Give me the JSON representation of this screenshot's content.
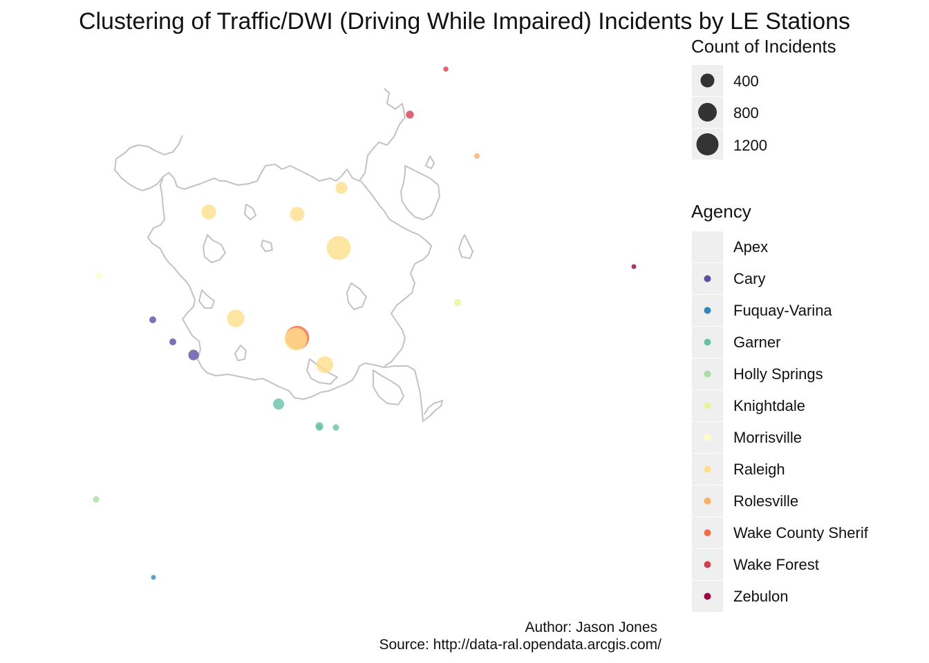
{
  "title": "Clustering of Traffic/DWI (Driving While Impaired) Incidents by LE Stations",
  "caption": {
    "author": "Author: Jason Jones",
    "source": "Source: http://data-ral.opendata.arcgis.com/"
  },
  "size_legend": {
    "title": "Count of Incidents",
    "entries": [
      "400",
      "800",
      "1200"
    ]
  },
  "agency_legend": {
    "title": "Agency",
    "entries": [
      {
        "name": "Apex",
        "color": ""
      },
      {
        "name": "Cary",
        "color": "#5e4fa2"
      },
      {
        "name": "Fuquay-Varina",
        "color": "#3288bd"
      },
      {
        "name": "Garner",
        "color": "#66c2a5"
      },
      {
        "name": "Holly Springs",
        "color": "#abdda4"
      },
      {
        "name": "Knightdale",
        "color": "#e6f598"
      },
      {
        "name": "Morrisville",
        "color": "#ffffbf"
      },
      {
        "name": "Raleigh",
        "color": "#fee08b"
      },
      {
        "name": "Rolesville",
        "color": "#fdae61"
      },
      {
        "name": "Wake County Sherif",
        "color": "#f46d43"
      },
      {
        "name": "Wake Forest",
        "color": "#d53e4f"
      },
      {
        "name": "Zebulon",
        "color": "#9e0142"
      }
    ]
  },
  "chart_data": {
    "type": "scatter",
    "mark": "bubble map (points sized by count, colored by agency, over city boundary outline)",
    "size_variable": "Count of Incidents",
    "color_variable": "Agency",
    "points": [
      {
        "agency": "Wake Forest",
        "count": 60
      },
      {
        "agency": "Wake Forest",
        "count": 140
      },
      {
        "agency": "Rolesville",
        "count": 70
      },
      {
        "agency": "Raleigh",
        "count": 330
      },
      {
        "agency": "Raleigh",
        "count": 480
      },
      {
        "agency": "Raleigh",
        "count": 500
      },
      {
        "agency": "Raleigh",
        "count": 1300
      },
      {
        "agency": "Zebulon",
        "count": 50
      },
      {
        "agency": "Morrisville",
        "count": 70
      },
      {
        "agency": "Knightdale",
        "count": 120
      },
      {
        "agency": "Cary",
        "count": 110
      },
      {
        "agency": "Cary",
        "count": 110
      },
      {
        "agency": "Cary",
        "count": 250
      },
      {
        "agency": "Raleigh",
        "count": 700
      },
      {
        "agency": "Wake County Sherif",
        "count": 1300
      },
      {
        "agency": "Raleigh",
        "count": 1150
      },
      {
        "agency": "Raleigh",
        "count": 650
      },
      {
        "agency": "Garner",
        "count": 280
      },
      {
        "agency": "Garner",
        "count": 90
      },
      {
        "agency": "Garner",
        "count": 90
      },
      {
        "agency": "Garner",
        "count": 140
      },
      {
        "agency": "Holly Springs",
        "count": 90
      },
      {
        "agency": "Fuquay-Varina",
        "count": 50
      }
    ]
  }
}
